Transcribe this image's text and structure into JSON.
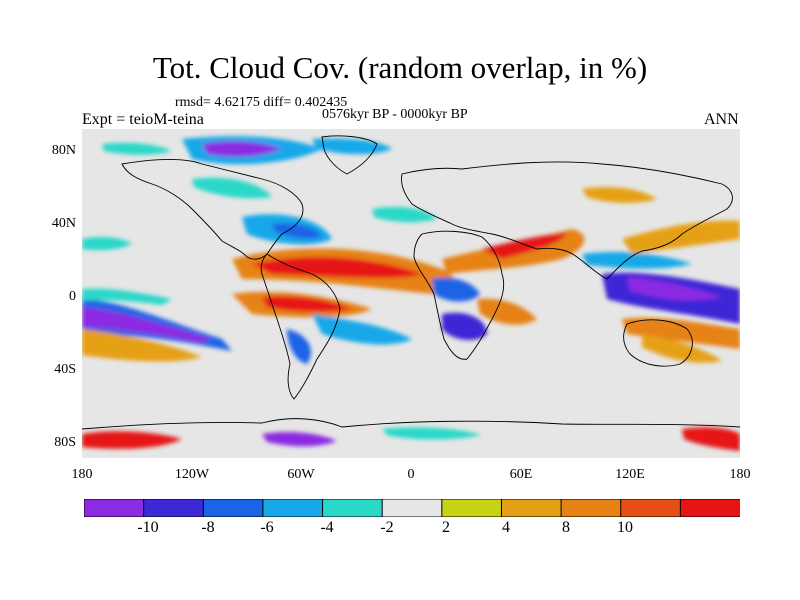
{
  "header": {
    "title": "Tot. Cloud Cov. (random overlap, in %)",
    "stats": "rmsd= 4.62175 diff= 0.402435",
    "period": "0576kyr BP - 0000kyr BP",
    "experiment": "Expt = teioM-teina",
    "season": "ANN"
  },
  "axes": {
    "lat_ticks": [
      "80N",
      "40N",
      "0",
      "40S",
      "80S"
    ],
    "lon_ticks": [
      "180",
      "120W",
      "60W",
      "0",
      "60E",
      "120E",
      "180"
    ]
  },
  "colorbar": {
    "colors": [
      "#8b2be2",
      "#3c28d6",
      "#1a64e6",
      "#18a8e8",
      "#2ad8c8",
      "#e6e6e6",
      "#c8d214",
      "#e6a016",
      "#e68214",
      "#e65014",
      "#e61414"
    ],
    "labels": [
      "-10",
      "-8",
      "-6",
      "-4",
      "-2",
      "2",
      "4",
      "8",
      "10"
    ]
  },
  "colors": {
    "land_background": "#e6e6e6",
    "coastline": "#000000"
  }
}
